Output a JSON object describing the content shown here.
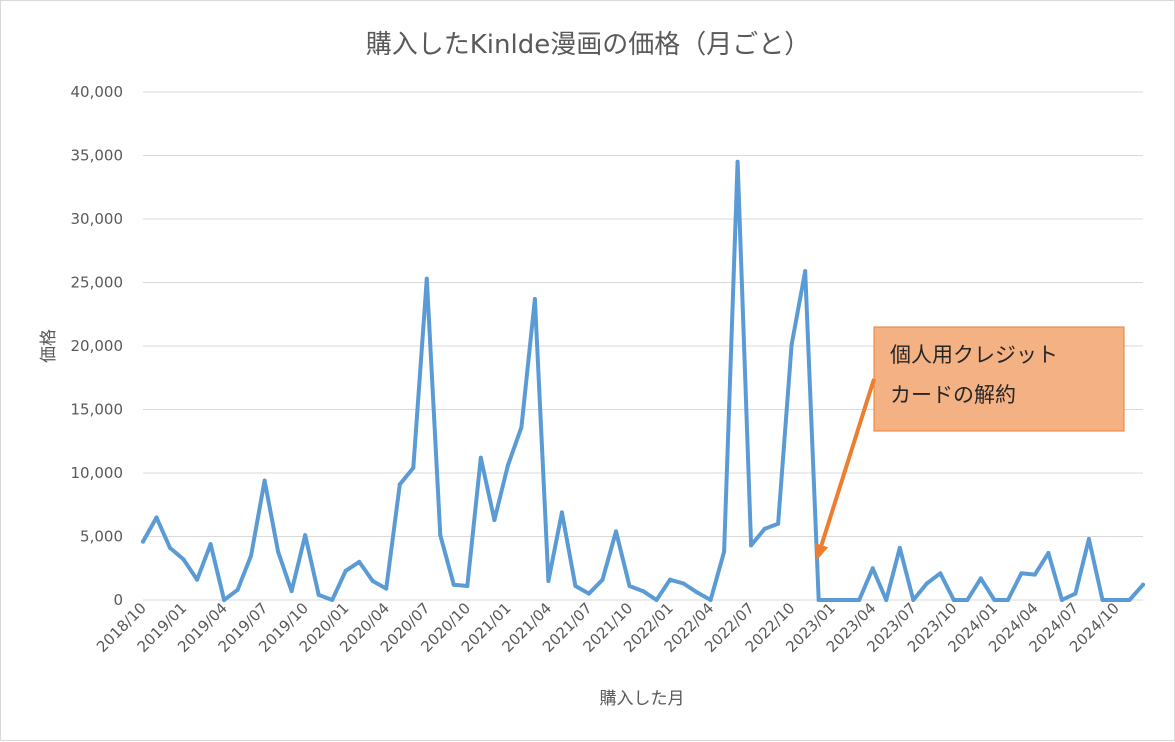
{
  "chart_data": {
    "type": "line",
    "title": "購入したKinlde漫画の価格（月ごと）",
    "xlabel": "購入した月",
    "ylabel": "価格",
    "ylim": [
      0,
      40000
    ],
    "yticks": [
      "0",
      "5,000",
      "10,000",
      "15,000",
      "20,000",
      "25,000",
      "30,000",
      "35,000",
      "40,000"
    ],
    "ytick_values": [
      0,
      5000,
      10000,
      15000,
      20000,
      25000,
      30000,
      35000,
      40000
    ],
    "x_tick_labels": [
      "2018/10",
      "2019/01",
      "2019/04",
      "2019/07",
      "2019/10",
      "2020/01",
      "2020/04",
      "2020/07",
      "2020/10",
      "2021/01",
      "2021/04",
      "2021/07",
      "2021/10",
      "2022/01",
      "2022/04",
      "2022/07",
      "2022/10",
      "2023/01",
      "2023/04",
      "2023/07",
      "2023/10",
      "2024/01",
      "2024/04",
      "2024/07",
      "2024/10"
    ],
    "grid": true,
    "legend": "none",
    "series_color": "#5b9bd5",
    "series": [
      {
        "x": [
          "2018/10",
          "2018/11",
          "2018/12",
          "2019/01",
          "2019/02",
          "2019/03",
          "2019/04",
          "2019/05",
          "2019/06",
          "2019/07",
          "2019/08",
          "2019/09",
          "2019/10",
          "2019/11",
          "2019/12",
          "2020/01",
          "2020/02",
          "2020/03",
          "2020/04",
          "2020/05",
          "2020/06",
          "2020/07",
          "2020/08",
          "2020/09",
          "2020/10",
          "2020/11",
          "2020/12",
          "2021/01",
          "2021/02",
          "2021/03",
          "2021/04",
          "2021/05",
          "2021/06",
          "2021/07",
          "2021/08",
          "2021/09",
          "2021/10",
          "2021/11",
          "2021/12",
          "2022/01",
          "2022/02",
          "2022/03",
          "2022/04",
          "2022/05",
          "2022/06",
          "2022/07",
          "2022/08",
          "2022/09",
          "2022/10",
          "2022/11",
          "2022/12",
          "2023/01",
          "2023/02",
          "2023/03",
          "2023/04",
          "2023/05",
          "2023/06",
          "2023/07",
          "2023/08",
          "2023/09",
          "2023/10",
          "2023/11",
          "2023/12",
          "2024/01",
          "2024/02",
          "2024/03",
          "2024/04",
          "2024/05",
          "2024/06",
          "2024/07",
          "2024/08",
          "2024/09",
          "2024/10",
          "2024/11",
          "2024/12"
        ],
        "values": [
          4600,
          6500,
          4100,
          3200,
          1600,
          4400,
          0,
          800,
          3500,
          9400,
          3800,
          700,
          5100,
          400,
          0,
          2300,
          3000,
          1500,
          900,
          9100,
          10400,
          25300,
          5100,
          1200,
          1100,
          11200,
          6300,
          10600,
          13600,
          23700,
          1500,
          6900,
          1100,
          500,
          1600,
          5400,
          1100,
          700,
          0,
          1600,
          1300,
          600,
          0,
          3800,
          34500,
          4300,
          5600,
          6000,
          20100,
          25900,
          0,
          0,
          0,
          0,
          2500,
          0,
          4100,
          0,
          1300,
          2100,
          0,
          0,
          1700,
          0,
          0,
          2100,
          2000,
          3700,
          0,
          500,
          4800,
          0,
          0,
          0,
          1200
        ]
      }
    ],
    "annotation": {
      "lines": [
        "個人用クレジット",
        "カードの解約"
      ],
      "target_x": "2022/12",
      "target_y": 2800,
      "box_color": "#f4b183",
      "border_color": "#ed7d31",
      "arrow_color": "#ed7d31"
    }
  }
}
